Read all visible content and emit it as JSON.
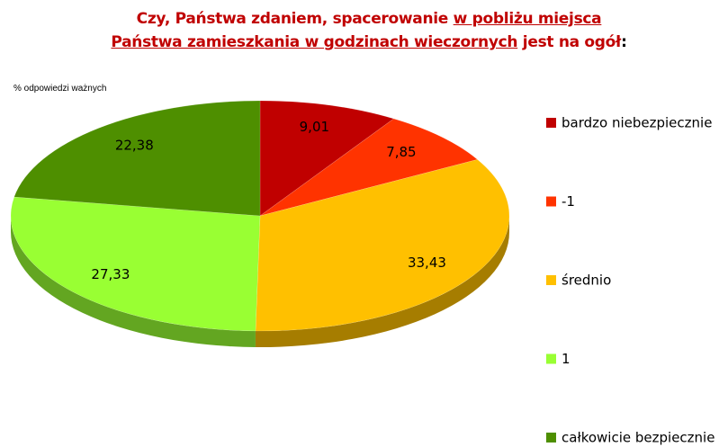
{
  "chart_data": {
    "type": "pie",
    "title_segments": [
      {
        "text": "Czy, Państwa zdaniem, spacerowanie ",
        "underline": false,
        "color": "#c00000"
      },
      {
        "text": "w pobliżu miejsca Państwa zamieszkania w godzinach wieczornych",
        "underline": true,
        "color": "#c00000"
      },
      {
        "text": " jest na ogół",
        "underline": false,
        "color": "#c00000"
      },
      {
        "text": ":",
        "underline": false,
        "color": "#000000"
      }
    ],
    "subtitle": "% odpowiedzi ważnych",
    "categories": [
      "bardzo niebezpiecznie",
      "-1",
      "średnio",
      "1",
      "całkowicie bezpiecznie"
    ],
    "values": [
      9.01,
      7.85,
      33.43,
      27.33,
      22.38
    ],
    "value_labels": [
      "9,01",
      "7,85",
      "33,43",
      "27,33",
      "22,38"
    ],
    "colors": [
      "#c00000",
      "#ff3300",
      "#ffc000",
      "#99ff33",
      "#4e8f00"
    ],
    "legend": "right"
  }
}
